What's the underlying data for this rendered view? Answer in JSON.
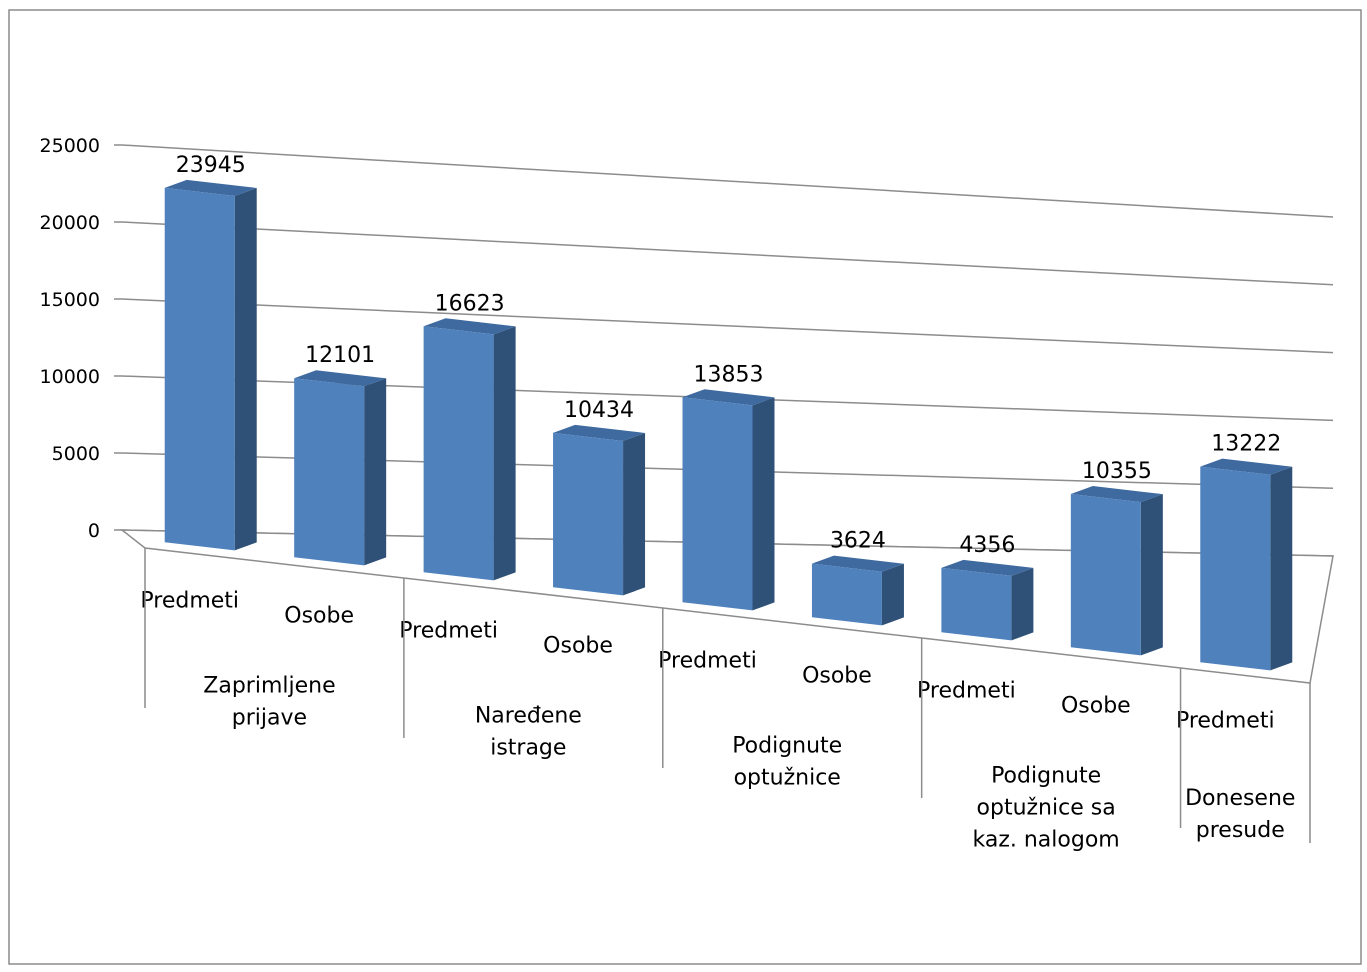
{
  "chart_data": {
    "type": "bar",
    "title": "",
    "xlabel": "",
    "ylabel": "",
    "ylim": [
      0,
      25000
    ],
    "yticks": [
      "0",
      "5000",
      "10000",
      "15000",
      "20000",
      "25000"
    ],
    "grid": true,
    "legend": "none",
    "bar_color": "#4F81BD",
    "bar_side_color": "#2F5177",
    "bar_top_color": "#3F6AA0",
    "categories": [
      {
        "label": "Predmeti",
        "group": "Zaprimljene prijave",
        "value": 23945,
        "value_label": "23945"
      },
      {
        "label": "Osobe",
        "group": "Zaprimljene prijave",
        "value": 12101,
        "value_label": "12101"
      },
      {
        "label": "Predmeti",
        "group": "Naređene istrage",
        "value": 16623,
        "value_label": "16623"
      },
      {
        "label": "Osobe",
        "group": "Naređene istrage",
        "value": 10434,
        "value_label": "10434"
      },
      {
        "label": "Predmeti",
        "group": "Podignute optužnice",
        "value": 13853,
        "value_label": "13853"
      },
      {
        "label": "Osobe",
        "group": "Podignute optužnice",
        "value": 3624,
        "value_label": "3624"
      },
      {
        "label": "Predmeti",
        "group": "Podignute optužnice sa kaz. nalogom",
        "value": 4356,
        "value_label": "4356"
      },
      {
        "label": "Osobe",
        "group": "Podignute optužnice sa kaz. nalogom",
        "value": 10355,
        "value_label": "10355"
      },
      {
        "label": "Predmeti",
        "group": "Donesene presude",
        "value": 13222,
        "value_label": "13222"
      }
    ],
    "groups": [
      {
        "name": "Zaprimljene prijave",
        "lines": [
          "Zaprimljene",
          "prijave"
        ]
      },
      {
        "name": "Naređene istrage",
        "lines": [
          "Naređene",
          "istrage"
        ]
      },
      {
        "name": "Podignute optužnice",
        "lines": [
          "Podignute",
          "optužnice"
        ]
      },
      {
        "name": "Podignute optužnice sa kaz. nalogom",
        "lines": [
          "Podignute",
          "optužnice sa",
          "kaz. nalogom"
        ]
      },
      {
        "name": "Donesene presude",
        "lines": [
          "Donesene",
          "presude"
        ]
      }
    ]
  }
}
